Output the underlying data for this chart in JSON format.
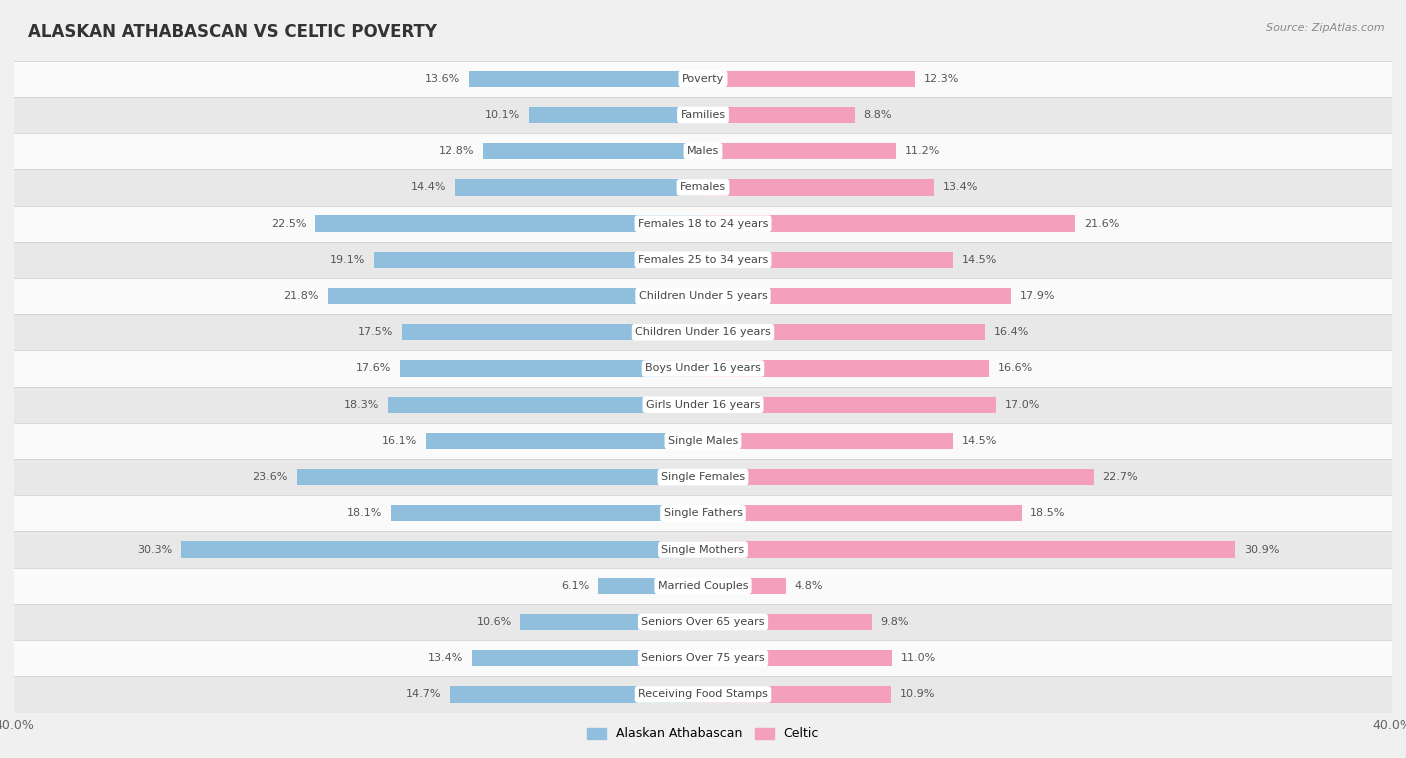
{
  "title": "ALASKAN ATHABASCAN VS CELTIC POVERTY",
  "source": "Source: ZipAtlas.com",
  "categories": [
    "Poverty",
    "Families",
    "Males",
    "Females",
    "Females 18 to 24 years",
    "Females 25 to 34 years",
    "Children Under 5 years",
    "Children Under 16 years",
    "Boys Under 16 years",
    "Girls Under 16 years",
    "Single Males",
    "Single Females",
    "Single Fathers",
    "Single Mothers",
    "Married Couples",
    "Seniors Over 65 years",
    "Seniors Over 75 years",
    "Receiving Food Stamps"
  ],
  "alaskan": [
    13.6,
    10.1,
    12.8,
    14.4,
    22.5,
    19.1,
    21.8,
    17.5,
    17.6,
    18.3,
    16.1,
    23.6,
    18.1,
    30.3,
    6.1,
    10.6,
    13.4,
    14.7
  ],
  "celtic": [
    12.3,
    8.8,
    11.2,
    13.4,
    21.6,
    14.5,
    17.9,
    16.4,
    16.6,
    17.0,
    14.5,
    22.7,
    18.5,
    30.9,
    4.8,
    9.8,
    11.0,
    10.9
  ],
  "alaskan_color": "#90bfde",
  "celtic_color": "#f4a0bc",
  "background_color": "#f0f0f0",
  "row_color_light": "#fafafa",
  "row_color_dark": "#e8e8e8",
  "xlim": 40.0,
  "bar_height": 0.45,
  "label_fontsize": 8.0,
  "value_fontsize": 8.0,
  "title_fontsize": 12,
  "source_fontsize": 8,
  "label_pill_color": "#ffffff",
  "label_text_color": "#444444",
  "value_color": "#555555"
}
